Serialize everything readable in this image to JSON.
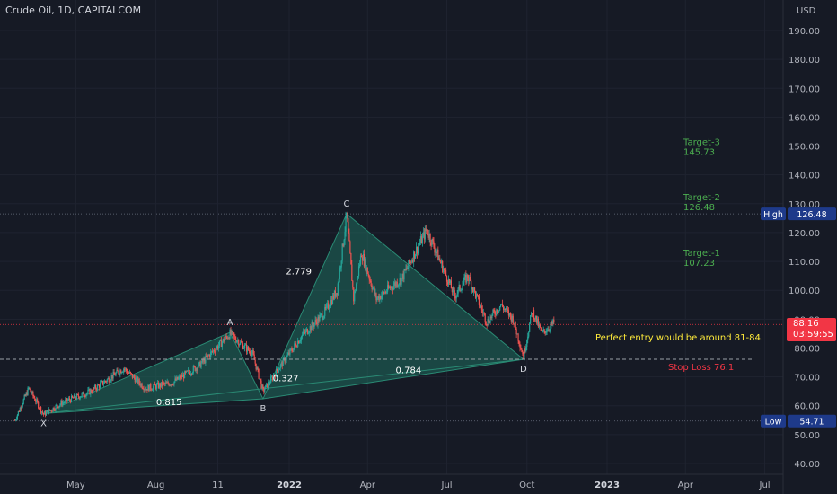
{
  "header": {
    "title": "Crude Oil, 1D, CAPITALCOM"
  },
  "colors": {
    "background": "#161a25",
    "grid": "#1f2330",
    "up": "#26a69a",
    "down": "#ef5350",
    "pattern_fill": "#1f6e5e",
    "target": "#4caf50",
    "stop": "#f23645",
    "note": "#ffeb3b",
    "badge_blue": "#1e3a8a"
  },
  "chart_data": {
    "type": "candlestick",
    "title": "Crude Oil, 1D, CAPITALCOM",
    "currency": "USD",
    "y_axis": {
      "label": "USD",
      "ticks": [
        40,
        50,
        60,
        70,
        80,
        90,
        100,
        110,
        120,
        130,
        140,
        150,
        160,
        170,
        180,
        190
      ],
      "range": [
        36,
        196
      ]
    },
    "x_axis": {
      "tick_labels": [
        "May",
        "Aug",
        "11",
        "2022",
        "Apr",
        "Jul",
        "Oct",
        "2023",
        "Apr",
        "Jul"
      ],
      "tick_dates": [
        "2021-05-01",
        "2021-08-01",
        "2021-10-11",
        "2022-01-01",
        "2022-04-01",
        "2022-07-01",
        "2022-10-01",
        "2023-01-01",
        "2023-04-01",
        "2023-07-01"
      ],
      "range": [
        "2021-02-20",
        "2023-08-25"
      ]
    },
    "price_path": [
      [
        "2021-02-20",
        55
      ],
      [
        "2021-03-08",
        66
      ],
      [
        "2021-03-25",
        57
      ],
      [
        "2021-04-15",
        61
      ],
      [
        "2021-05-18",
        65
      ],
      [
        "2021-06-25",
        73
      ],
      [
        "2021-07-20",
        66
      ],
      [
        "2021-08-20",
        68
      ],
      [
        "2021-09-20",
        74
      ],
      [
        "2021-10-25",
        85
      ],
      [
        "2021-11-20",
        78
      ],
      [
        "2021-12-02",
        65
      ],
      [
        "2021-12-20",
        73
      ],
      [
        "2022-01-15",
        84
      ],
      [
        "2022-02-10",
        92
      ],
      [
        "2022-02-25",
        100
      ],
      [
        "2022-03-08",
        126
      ],
      [
        "2022-03-16",
        97
      ],
      [
        "2022-03-25",
        113
      ],
      [
        "2022-04-11",
        97
      ],
      [
        "2022-05-10",
        104
      ],
      [
        "2022-06-08",
        121
      ],
      [
        "2022-07-10",
        98
      ],
      [
        "2022-07-25",
        105
      ],
      [
        "2022-08-16",
        89
      ],
      [
        "2022-09-01",
        95
      ],
      [
        "2022-09-15",
        90
      ],
      [
        "2022-09-27",
        77
      ],
      [
        "2022-10-07",
        93
      ],
      [
        "2022-10-18",
        85
      ],
      [
        "2022-11-02",
        89
      ]
    ],
    "last_price": {
      "value": 88.16,
      "countdown": "03:59:55"
    },
    "pattern_points": [
      {
        "label": "X",
        "date": "2021-03-25",
        "price": 57.3
      },
      {
        "label": "A",
        "date": "2021-10-25",
        "price": 85.4
      },
      {
        "label": "B",
        "date": "2021-12-02",
        "price": 62.4
      },
      {
        "label": "C",
        "date": "2022-03-08",
        "price": 126.48
      },
      {
        "label": "D",
        "date": "2022-09-27",
        "price": 76.1
      }
    ],
    "ratios": [
      {
        "label": "0.815",
        "date": "2021-08-16",
        "price": 60.2
      },
      {
        "label": "0.327",
        "date": "2021-12-28",
        "price": 68.5
      },
      {
        "label": "2.779",
        "date": "2022-01-12",
        "price": 105.5
      },
      {
        "label": "0.784",
        "date": "2022-05-18",
        "price": 71.2
      }
    ],
    "targets": [
      {
        "name": "Target-3",
        "value": "145.73",
        "price": 145.73
      },
      {
        "name": "Target-2",
        "value": "126.48",
        "price": 126.48
      },
      {
        "name": "Target-1",
        "value": "107.23",
        "price": 107.23
      }
    ],
    "stop_loss": {
      "label": "Stop Loss 76.1",
      "price": 76.1
    },
    "note": "Perfect entry would be around 81-84.",
    "high": {
      "label": "High",
      "value": "126.48",
      "price": 126.48
    },
    "low": {
      "label": "Low",
      "value": "54.71",
      "price": 54.71
    }
  }
}
